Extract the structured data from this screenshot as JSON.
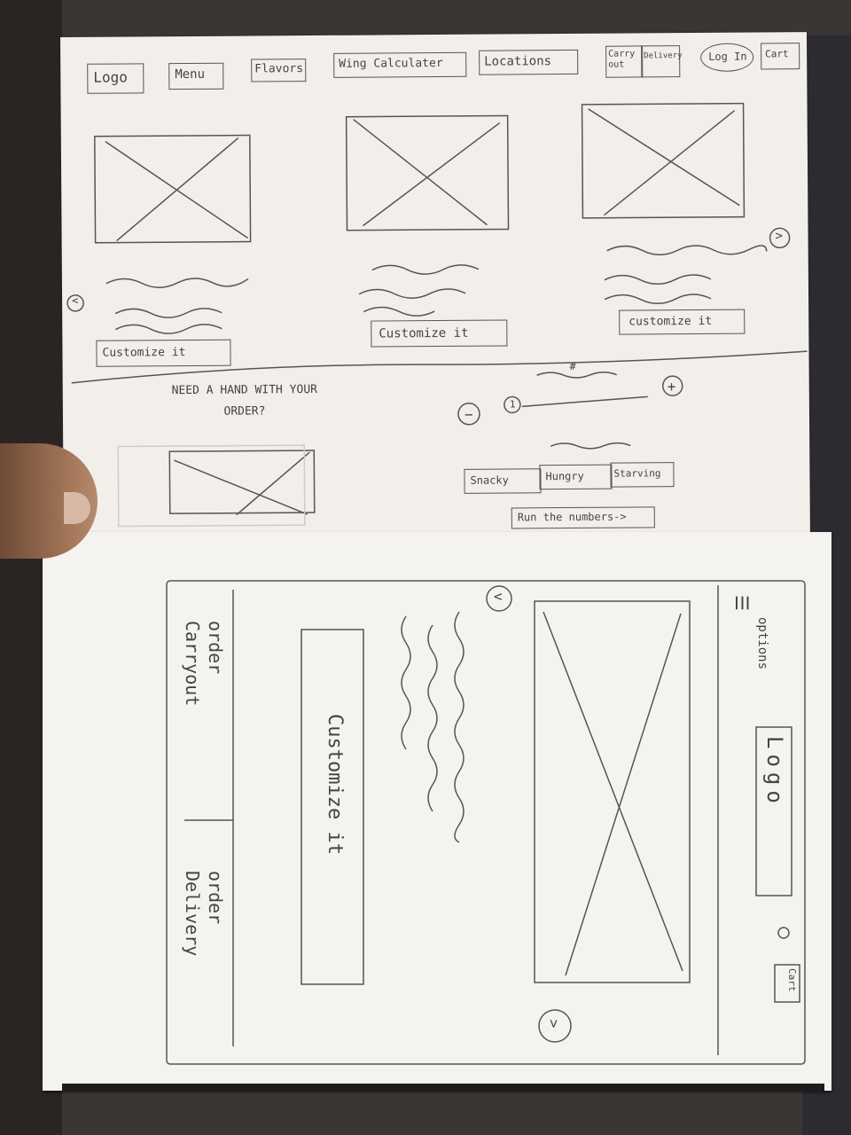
{
  "sketch_top": {
    "nav": {
      "logo": "Logo",
      "menu": "Menu",
      "flavors": "Flavors",
      "wing_calculator": "Wing Calculater",
      "locations": "Locations",
      "carry_out": "Carry out",
      "delivery": "Delivery",
      "log_in": "Log In",
      "cart": "Cart"
    },
    "carousel": {
      "prev_arrow": "<",
      "next_arrow": ">",
      "cards": [
        {
          "button": "Customize it"
        },
        {
          "button": "Customize it"
        },
        {
          "button": "customize it"
        }
      ]
    },
    "help": {
      "heading": "NEED A HAND WITH YOUR ORDER?",
      "minus": "−",
      "plus": "+",
      "slider_value": "1",
      "counter_label": "#",
      "options": [
        "Snacky",
        "Hungry",
        "Starving"
      ],
      "run_button": "Run the numbers->"
    }
  },
  "sketch_mobile": {
    "menu_icon": "☰",
    "options_label": "options",
    "logo": "Logo",
    "cart": "Cart",
    "prev_arrow": "<",
    "next_arrow": ">",
    "customize": "Customize it",
    "order_carryout": "order Carryout",
    "order_delivery": "order Delivery"
  }
}
